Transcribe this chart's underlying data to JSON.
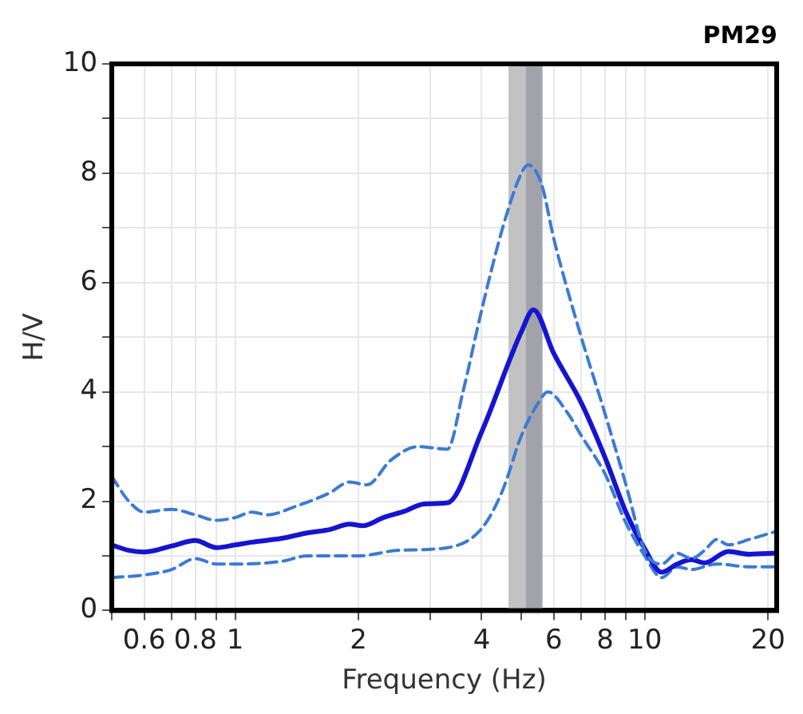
{
  "chart_data": {
    "type": "line",
    "title": "PM29",
    "xlabel": "Frequency (Hz)",
    "ylabel": "H/V",
    "log": "x",
    "grid": true,
    "legend": false,
    "marker": "none",
    "xlim": [
      0.5,
      21
    ],
    "xticks": [
      {
        "value": 0.5,
        "label": null
      },
      {
        "value": 0.6,
        "label": "0.6"
      },
      {
        "value": 0.7,
        "label": null
      },
      {
        "value": 0.8,
        "label": "0.8"
      },
      {
        "value": 0.9,
        "label": null
      },
      1,
      2,
      {
        "value": 3,
        "label": null
      },
      4,
      {
        "value": 5,
        "label": null
      },
      6,
      {
        "value": 7,
        "label": null
      },
      8,
      {
        "value": 9,
        "label": null
      },
      10,
      20
    ],
    "ylim": [
      0,
      10
    ],
    "yticks": [
      0,
      {
        "value": 1,
        "label": null
      },
      2,
      {
        "value": 3,
        "label": null
      },
      4,
      {
        "value": 5,
        "label": null
      },
      6,
      {
        "value": 7,
        "label": null
      },
      8,
      {
        "value": 9,
        "label": null
      },
      10
    ],
    "bands": [
      {
        "axis": "x",
        "from": 4.65,
        "to": 5.12,
        "color": "#c2c2c2"
      },
      {
        "axis": "x",
        "from": 5.12,
        "to": 5.63,
        "color": "#a2a2aa"
      }
    ],
    "series": [
      {
        "color": "#3a7bd5",
        "line_style": "dashed",
        "x": [
          0.5,
          0.55,
          0.6,
          0.7,
          0.8,
          0.9,
          1,
          1.1,
          1.2,
          1.4,
          1.7,
          1.9,
          2.1,
          2.4,
          2.8,
          3.3,
          3.6,
          4,
          4.5,
          5,
          5.2,
          5.6,
          6,
          7,
          8,
          9,
          10,
          11,
          12,
          13,
          14,
          15,
          16,
          18,
          21
        ],
        "values": [
          2.45,
          2.0,
          1.8,
          1.85,
          1.75,
          1.65,
          1.7,
          1.8,
          1.75,
          1.9,
          2.15,
          2.35,
          2.3,
          2.75,
          3.0,
          2.95,
          4.0,
          5.5,
          7.0,
          8.0,
          8.15,
          7.8,
          6.8,
          5.0,
          3.6,
          2.3,
          1.1,
          0.85,
          1.05,
          0.95,
          1.1,
          1.3,
          1.2,
          1.3,
          1.45
        ]
      },
      {
        "color": "#1515d0",
        "line_style": "solid",
        "x": [
          0.5,
          0.55,
          0.6,
          0.7,
          0.8,
          0.9,
          1,
          1.1,
          1.3,
          1.5,
          1.7,
          1.9,
          2.05,
          2.3,
          2.6,
          2.9,
          3.3,
          4,
          5,
          5.35,
          6,
          7,
          8,
          9,
          10,
          11,
          12,
          13,
          14,
          16,
          18,
          21
        ],
        "values": [
          1.2,
          1.1,
          1.07,
          1.18,
          1.28,
          1.15,
          1.2,
          1.25,
          1.32,
          1.42,
          1.48,
          1.58,
          1.55,
          1.7,
          1.82,
          1.95,
          1.97,
          3.27,
          5.1,
          5.5,
          4.7,
          3.8,
          2.8,
          1.8,
          1.13,
          0.7,
          0.85,
          0.93,
          0.87,
          1.08,
          1.03,
          1.05
        ]
      },
      {
        "color": "#3a7bd5",
        "line_style": "dashed",
        "x": [
          0.5,
          0.6,
          0.7,
          0.8,
          0.9,
          1,
          1.3,
          1.5,
          2,
          2.5,
          3.3,
          4,
          4.5,
          5,
          5.5,
          5.8,
          6.5,
          7,
          8,
          9,
          10,
          11,
          12,
          13,
          15,
          18,
          21
        ],
        "values": [
          0.6,
          0.65,
          0.75,
          0.95,
          0.85,
          0.85,
          0.9,
          1.0,
          1.0,
          1.1,
          1.15,
          1.5,
          2.2,
          3.2,
          3.8,
          4.0,
          3.6,
          3.2,
          2.5,
          1.6,
          1.0,
          0.6,
          0.8,
          0.75,
          0.85,
          0.8,
          0.8
        ]
      }
    ]
  }
}
